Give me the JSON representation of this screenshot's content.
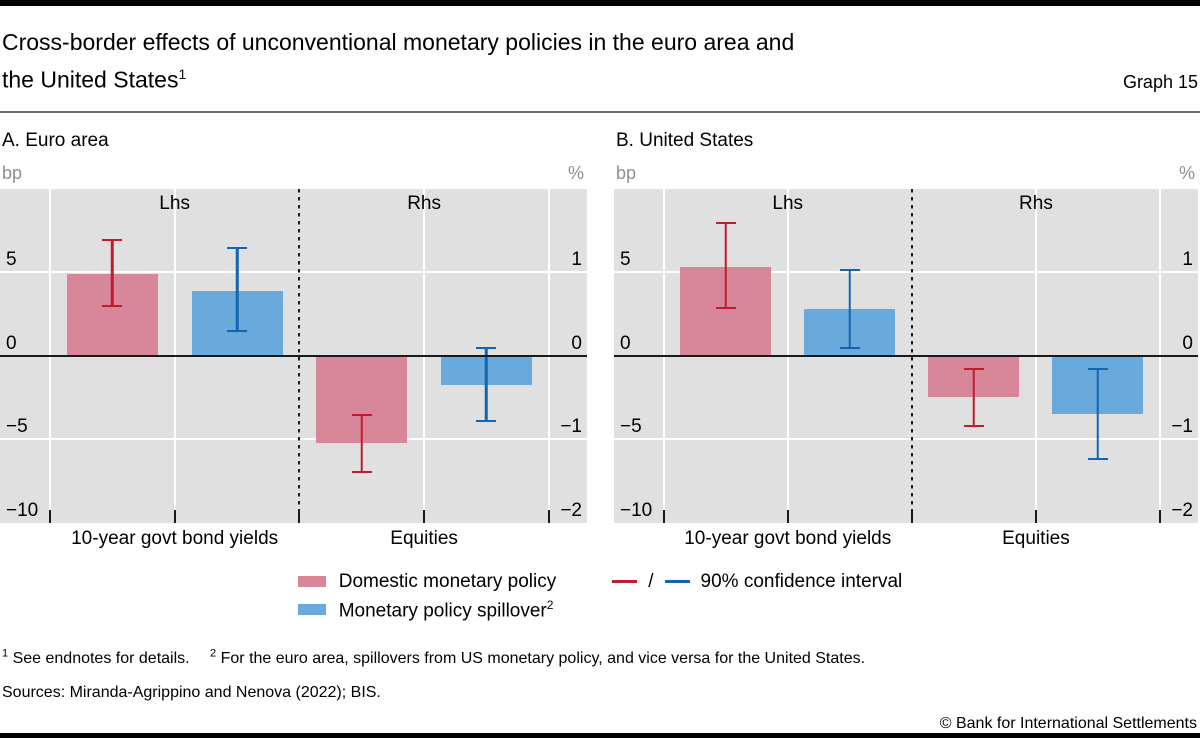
{
  "header": {
    "title": {
      "line1": "Cross-border effects of unconventional monetary policies in the euro area and",
      "line2": "the United States",
      "superscript": "1"
    },
    "graph_label": "Graph 15"
  },
  "colors": {
    "bar-pink": "#d8879a",
    "bar-blue": "#6aa9db",
    "line-red": "#c11b2e",
    "line-blue": "#1266b1",
    "plot-bg": "#e0e0e0",
    "unit-gray": "#8f8f8f"
  },
  "chart_data": [
    {
      "type": "bar",
      "title": "A. Euro area",
      "left_axis": {
        "unit": "bp",
        "label": "Lhs",
        "range": [
          -10,
          10
        ],
        "ticks": [
          {
            "label": "5",
            "value": 5
          },
          {
            "label": "0",
            "value": 0
          },
          {
            "label": "−5",
            "value": -5
          },
          {
            "label": "−10",
            "value": -10
          }
        ]
      },
      "right_axis": {
        "unit": "%",
        "label": "Rhs",
        "range": [
          -2,
          2
        ],
        "ticks": [
          {
            "label": "1",
            "value": 1
          },
          {
            "label": "0",
            "value": 0
          },
          {
            "label": "−1",
            "value": -1
          },
          {
            "label": "−2",
            "value": -2
          }
        ]
      },
      "sections": [
        {
          "category": "10-year govt bond yields",
          "axis": "Lhs",
          "bars": [
            {
              "series": "Domestic monetary policy",
              "color": "pink",
              "value": 4.9,
              "ci_low": 2.9,
              "ci_high": 7.0
            },
            {
              "series": "Monetary policy spillover",
              "color": "blue",
              "value": 3.9,
              "ci_low": 1.4,
              "ci_high": 6.5
            }
          ]
        },
        {
          "category": "Equities",
          "axis": "Rhs",
          "bars": [
            {
              "series": "Domestic monetary policy",
              "color": "pink",
              "value": -1.05,
              "ci_low": -1.4,
              "ci_high": -0.7
            },
            {
              "series": "Monetary policy spillover",
              "color": "blue",
              "value": -0.35,
              "ci_low": -0.8,
              "ci_high": 0.1
            }
          ]
        }
      ]
    },
    {
      "type": "bar",
      "title": "B. United States",
      "left_axis": {
        "unit": "bp",
        "label": "Lhs",
        "range": [
          -10,
          10
        ],
        "ticks": [
          {
            "label": "5",
            "value": 5
          },
          {
            "label": "0",
            "value": 0
          },
          {
            "label": "−5",
            "value": -5
          },
          {
            "label": "−10",
            "value": -10
          }
        ]
      },
      "right_axis": {
        "unit": "%",
        "label": "Rhs",
        "range": [
          -2,
          2
        ],
        "ticks": [
          {
            "label": "1",
            "value": 1
          },
          {
            "label": "0",
            "value": 0
          },
          {
            "label": "−1",
            "value": -1
          },
          {
            "label": "−2",
            "value": -2
          }
        ]
      },
      "sections": [
        {
          "category": "10-year govt bond yields",
          "axis": "Lhs",
          "bars": [
            {
              "series": "Domestic monetary policy",
              "color": "pink",
              "value": 5.3,
              "ci_low": 2.8,
              "ci_high": 8.0
            },
            {
              "series": "Monetary policy spillover",
              "color": "blue",
              "value": 2.8,
              "ci_low": 0.4,
              "ci_high": 5.2
            }
          ]
        },
        {
          "category": "Equities",
          "axis": "Rhs",
          "bars": [
            {
              "series": "Domestic monetary policy",
              "color": "pink",
              "value": -0.5,
              "ci_low": -0.85,
              "ci_high": -0.15
            },
            {
              "series": "Monetary policy spillover",
              "color": "blue",
              "value": -0.7,
              "ci_low": -1.25,
              "ci_high": -0.15
            }
          ]
        }
      ]
    }
  ],
  "legend": {
    "items": [
      {
        "swatch": "pink",
        "label": "Domestic monetary policy",
        "superscript": ""
      },
      {
        "swatch": "blue",
        "label": "Monetary policy spillover",
        "superscript": "2"
      }
    ],
    "ci": {
      "separator": "/",
      "label": "90% confidence interval"
    }
  },
  "footnotes": [
    {
      "marker": "1",
      "text": "See endnotes for details."
    },
    {
      "marker": "2",
      "text": "For the euro area, spillovers from US monetary policy, and vice versa for the United States."
    }
  ],
  "sources": "Sources: Miranda-Agrippino and Nenova (2022); BIS.",
  "copyright": "© Bank for International Settlements"
}
